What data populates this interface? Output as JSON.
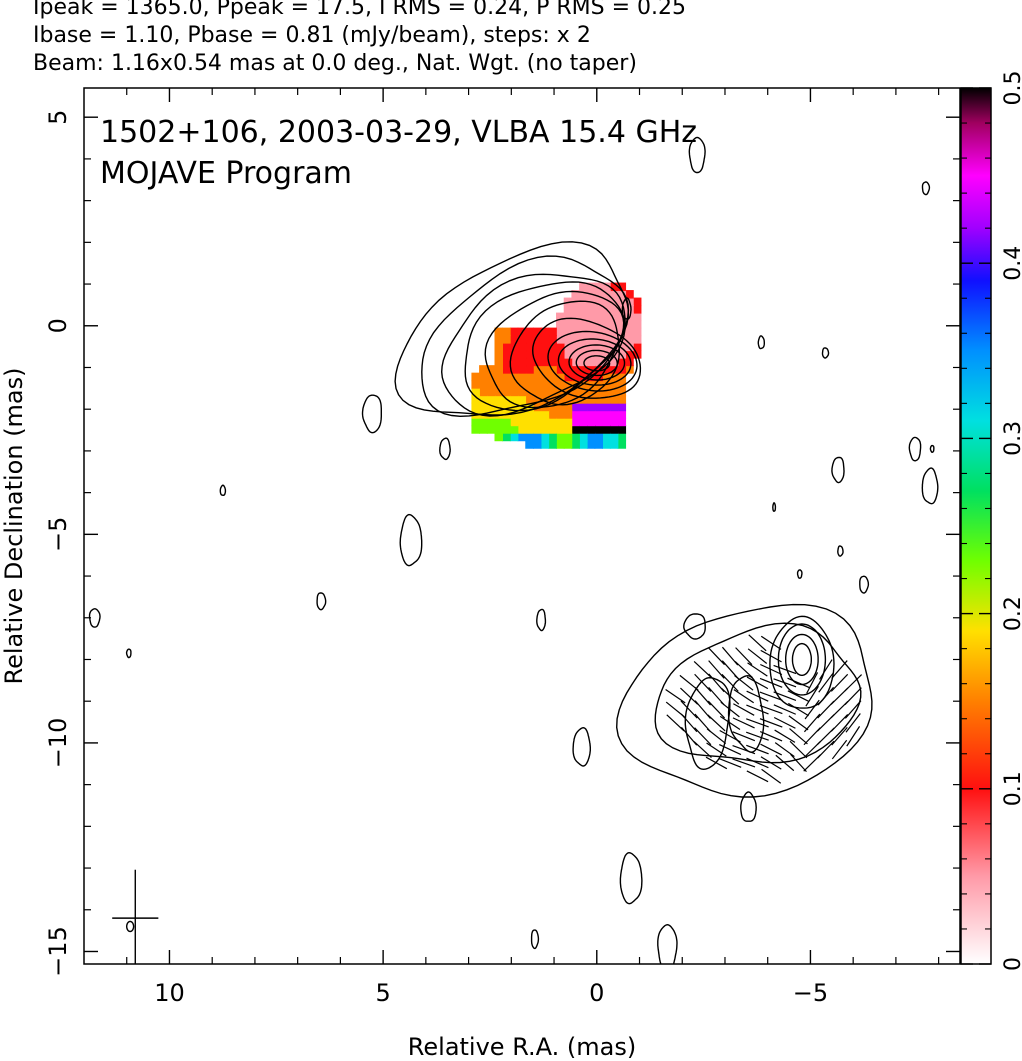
{
  "header": {
    "line1": "Ipeak = 1365.0, Ppeak = 17.5, I RMS = 0.24, P RMS = 0.25",
    "line2": "Ibase = 1.10, Pbase = 0.81 (mJy/beam), steps: x 2",
    "line3": "Beam: 1.16x0.54 mas at 0.0 deg., Nat. Wgt. (no taper)"
  },
  "chart_data": {
    "type": "heatmap",
    "title": "1502+106, 2003-03-29, VLBA 15.4 GHz",
    "subtitle": "MOJAVE Program",
    "xlabel": "Relative R.A. (mas)",
    "ylabel": "Relative Declination (mas)",
    "xlim": [
      12,
      -8.5
    ],
    "ylim": [
      -15.3,
      5.7
    ],
    "x_ticks": [
      10,
      5,
      0,
      -5
    ],
    "x_tick_labels": [
      "10",
      "5",
      "0",
      "−5"
    ],
    "y_ticks": [
      5,
      0,
      -5,
      -10,
      -15
    ],
    "y_tick_labels": [
      "5",
      "0",
      "−5",
      "−10",
      "−15"
    ],
    "colorbar": {
      "range": [
        0,
        0.5
      ],
      "ticks": [
        0,
        0.1,
        0.2,
        0.3,
        0.4,
        0.5
      ],
      "tick_labels": [
        "0",
        "0.1",
        "0.2",
        "0.3",
        "0.4",
        "0.5"
      ]
    },
    "contour_levels_mjy": [
      1.1,
      2.2,
      4.4,
      8.8,
      17.6,
      35.2,
      70.4,
      140.8,
      281.6,
      563.2,
      1126.4
    ],
    "core": {
      "x": 0,
      "y": 0,
      "peak": 1365.0
    },
    "jet_feature": {
      "x": -4.8,
      "y": -8.0
    },
    "beam": {
      "major": 1.16,
      "minor": 0.54,
      "pa": 0.0,
      "x": 10.8,
      "y": -14.2
    },
    "colors": {
      "contour": "#000000",
      "background": "#ffffff",
      "axis": "#000000"
    }
  }
}
